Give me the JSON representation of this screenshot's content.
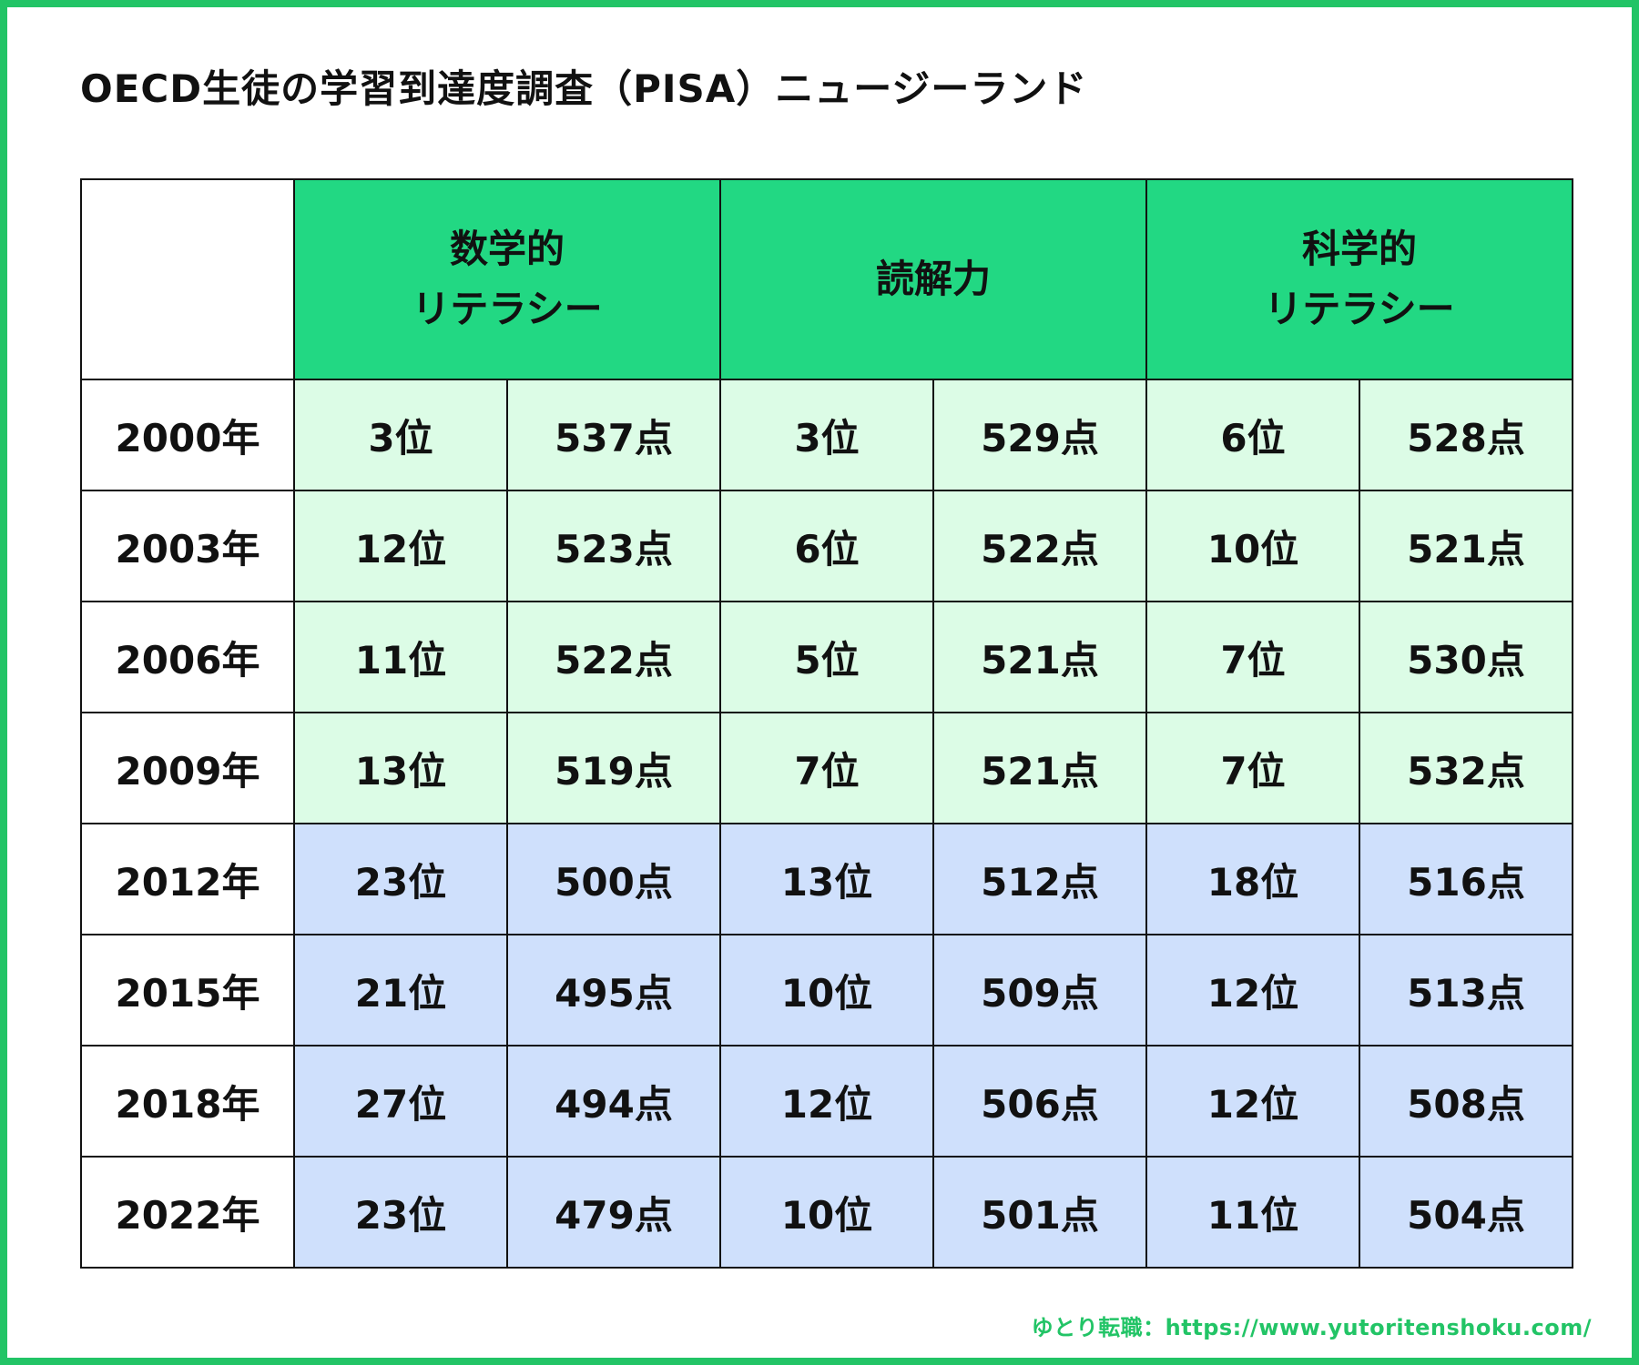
{
  "title": "OECD生徒の学習到達度調査（PISA）ニュージーランド",
  "colors": {
    "border_accent": "#22c466",
    "header_bg": "#22d883",
    "early_rows_bg": "#dcfce6",
    "late_rows_bg": "#cfe0fc"
  },
  "chart_data": {
    "type": "table",
    "columns": [
      {
        "line1": "数学的",
        "line2": "リテラシー"
      },
      {
        "line1": "読解力",
        "line2": ""
      },
      {
        "line1": "科学的",
        "line2": "リテラシー"
      }
    ],
    "rows": [
      {
        "year": "2000年",
        "cells": [
          "3位",
          "537点",
          "3位",
          "529点",
          "6位",
          "528点"
        ]
      },
      {
        "year": "2003年",
        "cells": [
          "12位",
          "523点",
          "6位",
          "522点",
          "10位",
          "521点"
        ]
      },
      {
        "year": "2006年",
        "cells": [
          "11位",
          "522点",
          "5位",
          "521点",
          "7位",
          "530点"
        ]
      },
      {
        "year": "2009年",
        "cells": [
          "13位",
          "519点",
          "7位",
          "521点",
          "7位",
          "532点"
        ]
      },
      {
        "year": "2012年",
        "cells": [
          "23位",
          "500点",
          "13位",
          "512点",
          "18位",
          "516点"
        ]
      },
      {
        "year": "2015年",
        "cells": [
          "21位",
          "495点",
          "10位",
          "509点",
          "12位",
          "513点"
        ]
      },
      {
        "year": "2018年",
        "cells": [
          "27位",
          "494点",
          "12位",
          "506点",
          "12位",
          "508点"
        ]
      },
      {
        "year": "2022年",
        "cells": [
          "23位",
          "479点",
          "10位",
          "501点",
          "11位",
          "504点"
        ]
      }
    ]
  },
  "footer": "ゆとり転職：https://www.yutoritenshoku.com/"
}
